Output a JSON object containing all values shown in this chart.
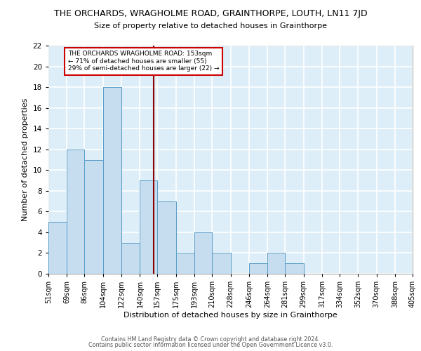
{
  "title": "THE ORCHARDS, WRAGHOLME ROAD, GRAINTHORPE, LOUTH, LN11 7JD",
  "subtitle": "Size of property relative to detached houses in Grainthorpe",
  "xlabel": "Distribution of detached houses by size in Grainthorpe",
  "ylabel": "Number of detached properties",
  "bin_edges": [
    51,
    69,
    86,
    104,
    122,
    140,
    157,
    175,
    193,
    210,
    228,
    246,
    264,
    281,
    299,
    317,
    334,
    352,
    370,
    388,
    405
  ],
  "bin_labels": [
    "51sqm",
    "69sqm",
    "86sqm",
    "104sqm",
    "122sqm",
    "140sqm",
    "157sqm",
    "175sqm",
    "193sqm",
    "210sqm",
    "228sqm",
    "246sqm",
    "264sqm",
    "281sqm",
    "299sqm",
    "317sqm",
    "334sqm",
    "352sqm",
    "370sqm",
    "388sqm",
    "405sqm"
  ],
  "counts": [
    5,
    12,
    11,
    18,
    3,
    9,
    7,
    2,
    4,
    2,
    0,
    1,
    2,
    1,
    0,
    0,
    0,
    0,
    0,
    0
  ],
  "bar_color": "#c5ddef",
  "bar_edgecolor": "#5a9ec9",
  "property_line_x": 153,
  "property_line_color": "#8b0000",
  "annotation_text": "THE ORCHARDS WRAGHOLME ROAD: 153sqm\n← 71% of detached houses are smaller (55)\n29% of semi-detached houses are larger (22) →",
  "annotation_box_color": "#ffffff",
  "annotation_box_edgecolor": "#cc0000",
  "ylim": [
    0,
    22
  ],
  "yticks": [
    0,
    2,
    4,
    6,
    8,
    10,
    12,
    14,
    16,
    18,
    20,
    22
  ],
  "bg_color": "#ddeef8",
  "grid_color": "#ffffff",
  "footer1": "Contains HM Land Registry data © Crown copyright and database right 2024.",
  "footer2": "Contains public sector information licensed under the Open Government Licence v3.0."
}
